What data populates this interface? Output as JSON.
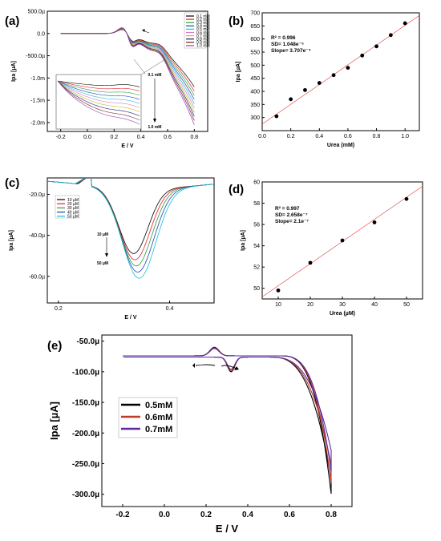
{
  "chart_data": [
    {
      "id": "a",
      "type": "line",
      "panel_label": "(a)",
      "xlabel": "E / V",
      "ylabel": "Ipa [µA]",
      "xlim": [
        -0.3,
        0.9
      ],
      "ylim": [
        -2.2,
        0.5
      ],
      "x_ticks": [
        -0.2,
        0.0,
        0.2,
        0.4,
        0.6,
        0.8
      ],
      "x_tick_labels": [
        "-0.2",
        "0.0",
        "0.2",
        "0.4",
        "0.6",
        "0.8"
      ],
      "y_ticks": [
        0.5,
        0.0,
        -0.5,
        -1.0,
        -1.5,
        -2.0
      ],
      "y_tick_labels": [
        "500.0µ",
        "0.0",
        "-500.0µ",
        "-1.0m",
        "-1.5m",
        "-2.0m"
      ],
      "series": [
        {
          "name": "0.1 mM",
          "color": "#000000"
        },
        {
          "name": "0.2 mM",
          "color": "#e8192c"
        },
        {
          "name": "0.3 mM",
          "color": "#2ca02c"
        },
        {
          "name": "0.4 mM",
          "color": "#1f3fbf"
        },
        {
          "name": "0.5 mM",
          "color": "#17becf"
        },
        {
          "name": "0.6 mM",
          "color": "#e377c2"
        },
        {
          "name": "0.7 mM",
          "color": "#bcbd22"
        },
        {
          "name": "0.8 mM",
          "color": "#1a1a6e"
        },
        {
          "name": "0.9 mM",
          "color": "#7a1f1f"
        },
        {
          "name": "1.0 mM",
          "color": "#8e44ad"
        }
      ],
      "annotations": {
        "top": "0.1 mM",
        "bottom": "1.0 mM"
      }
    },
    {
      "id": "b",
      "type": "scatter",
      "panel_label": "(b)",
      "xlabel": "Urea (mM)",
      "ylabel": "Ipa [µA]",
      "xlim": [
        0.0,
        1.1
      ],
      "ylim": [
        250,
        700
      ],
      "x_ticks": [
        0.0,
        0.2,
        0.4,
        0.6,
        0.8,
        1.0
      ],
      "x_tick_labels": [
        "0.0",
        "0.2",
        "0.4",
        "0.6",
        "0.8",
        "1.0"
      ],
      "y_ticks": [
        300,
        350,
        400,
        450,
        500,
        550,
        600,
        650,
        700
      ],
      "y_tick_labels": [
        "300",
        "350",
        "400",
        "450",
        "500",
        "550",
        "600",
        "650",
        "700"
      ],
      "x": [
        0.1,
        0.2,
        0.3,
        0.4,
        0.5,
        0.6,
        0.7,
        0.8,
        0.9,
        1.0
      ],
      "y": [
        305,
        370,
        405,
        432,
        462,
        490,
        537,
        572,
        615,
        660
      ],
      "fit": [
        [
          0.0,
          275
        ],
        [
          1.1,
          690
        ]
      ],
      "annotation_lines": [
        "R² = 0.996",
        "SD= 1.048e⁻⁵",
        "Slope= 3.707e⁻⁴"
      ]
    },
    {
      "id": "c",
      "type": "line",
      "panel_label": "(c)",
      "xlabel": "E / V",
      "ylabel": "Ipa [µA]",
      "xlim": [
        0.18,
        0.48
      ],
      "ylim": [
        -73,
        -12
      ],
      "x_ticks": [
        0.2,
        0.4
      ],
      "x_tick_labels": [
        "0.2",
        "0.4"
      ],
      "y_ticks": [
        -20,
        -40,
        -60
      ],
      "y_tick_labels": [
        "-20.0µ",
        "-40.0µ",
        "-60.0µ"
      ],
      "series": [
        {
          "name": "10 µM",
          "color": "#000000"
        },
        {
          "name": "20 µM",
          "color": "#e8192c"
        },
        {
          "name": "30 µM",
          "color": "#2ca02c"
        },
        {
          "name": "40 µM",
          "color": "#1f3fbf"
        },
        {
          "name": "50 µM",
          "color": "#17becf"
        }
      ],
      "annotations": {
        "top": "10 µM",
        "bottom": "50 µM"
      }
    },
    {
      "id": "d",
      "type": "scatter",
      "panel_label": "(d)",
      "xlabel": "Urea (µM)",
      "ylabel": "Ipa [µA]",
      "xlim": [
        5,
        55
      ],
      "ylim": [
        49,
        60
      ],
      "x_ticks": [
        10,
        20,
        30,
        40,
        50
      ],
      "x_tick_labels": [
        "10",
        "20",
        "30",
        "40",
        "50"
      ],
      "y_ticks": [
        50,
        52,
        54,
        56,
        58,
        60
      ],
      "y_tick_labels": [
        "50",
        "52",
        "54",
        "56",
        "58",
        "60"
      ],
      "x": [
        10,
        20,
        30,
        40,
        50
      ],
      "y": [
        49.8,
        52.4,
        54.5,
        56.2,
        58.4
      ],
      "fit": [
        [
          5,
          49.2
        ],
        [
          55,
          59.6
        ]
      ],
      "annotation_lines": [
        "R² = 0.997",
        "SD= 2.658e⁻⁷",
        "Slope= 2.1e⁻⁷"
      ]
    },
    {
      "id": "e",
      "type": "line",
      "panel_label": "(e)",
      "xlabel": "E / V",
      "ylabel": "Ipa [µA]",
      "xlim": [
        -0.3,
        0.9
      ],
      "ylim": [
        -320,
        -40
      ],
      "x_ticks": [
        -0.2,
        0.0,
        0.2,
        0.4,
        0.6,
        0.8
      ],
      "x_tick_labels": [
        "-0.2",
        "0.0",
        "0.2",
        "0.4",
        "0.6",
        "0.8"
      ],
      "y_ticks": [
        -50,
        -100,
        -150,
        -200,
        -250,
        -300
      ],
      "y_tick_labels": [
        "-50.0µ",
        "-100.0µ",
        "-150.0µ",
        "-200.0µ",
        "-250.0µ",
        "-300.0µ"
      ],
      "series": [
        {
          "name": "0.5mM",
          "color": "#000000"
        },
        {
          "name": "0.6mM",
          "color": "#c0392b"
        },
        {
          "name": "0.7mM",
          "color": "#5b2ca0"
        }
      ]
    }
  ]
}
